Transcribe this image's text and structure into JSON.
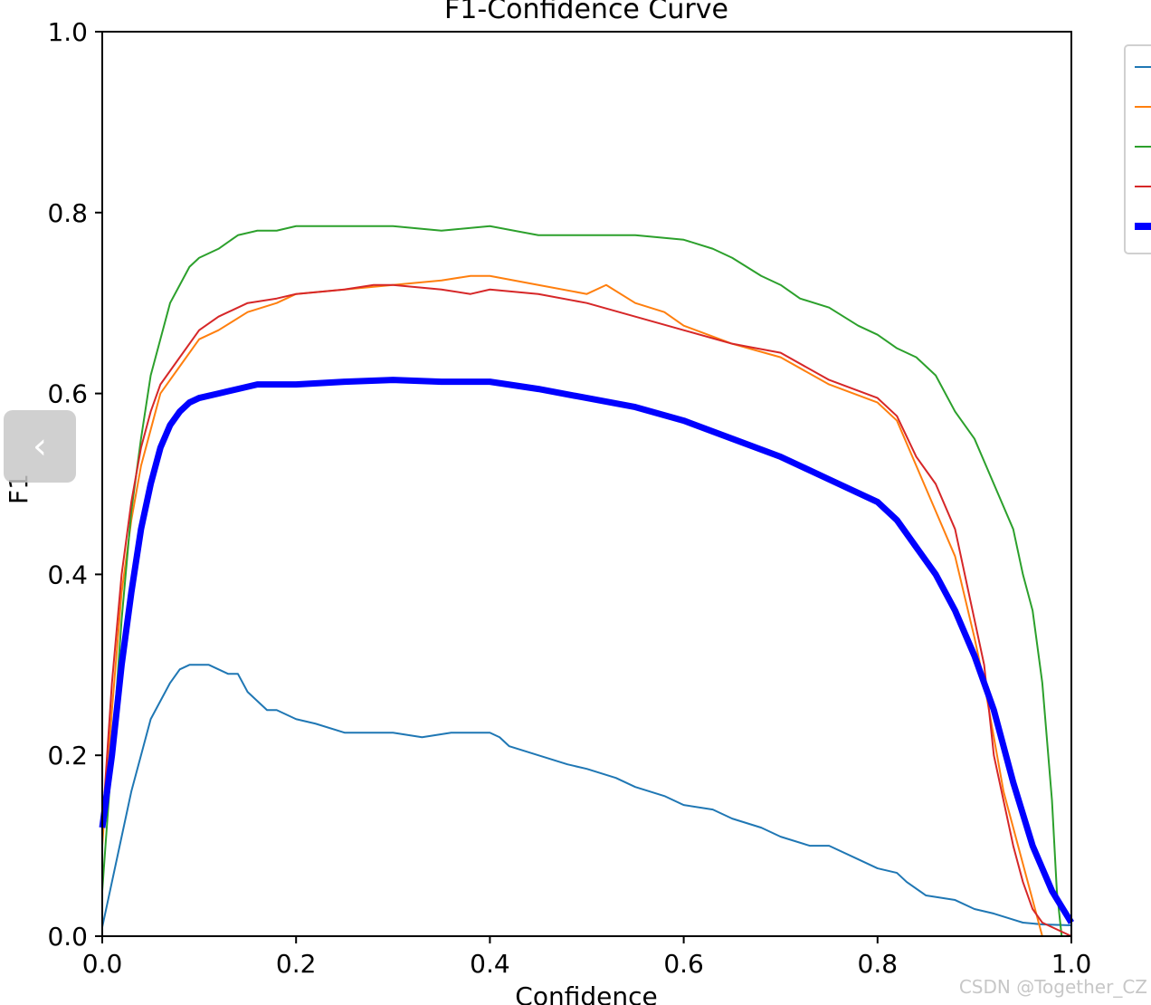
{
  "chart_data": {
    "type": "line",
    "title": "F1-Confidence Curve",
    "xlabel": "Confidence",
    "ylabel": "F1",
    "xlim": [
      0,
      1
    ],
    "ylim": [
      0,
      1
    ],
    "x_ticks": [
      "0.0",
      "0.2",
      "0.4",
      "0.6",
      "0.8",
      "1.0"
    ],
    "y_ticks": [
      "0.0",
      "0.2",
      "0.4",
      "0.6",
      "0.8",
      "1.0"
    ],
    "grid": false,
    "legend_position": "upper-right-outside",
    "series": [
      {
        "color": "#1f77b4",
        "width": 2,
        "x": [
          0,
          0.01,
          0.02,
          0.03,
          0.04,
          0.05,
          0.06,
          0.07,
          0.08,
          0.09,
          0.1,
          0.11,
          0.12,
          0.13,
          0.14,
          0.15,
          0.16,
          0.17,
          0.18,
          0.2,
          0.22,
          0.25,
          0.28,
          0.3,
          0.33,
          0.36,
          0.39,
          0.4,
          0.41,
          0.42,
          0.45,
          0.48,
          0.5,
          0.53,
          0.55,
          0.58,
          0.6,
          0.63,
          0.65,
          0.68,
          0.7,
          0.73,
          0.75,
          0.78,
          0.8,
          0.82,
          0.83,
          0.85,
          0.88,
          0.9,
          0.92,
          0.95,
          0.97,
          1.0
        ],
        "y": [
          0.01,
          0.06,
          0.11,
          0.16,
          0.2,
          0.24,
          0.26,
          0.28,
          0.295,
          0.3,
          0.3,
          0.3,
          0.295,
          0.29,
          0.29,
          0.27,
          0.26,
          0.25,
          0.25,
          0.24,
          0.235,
          0.225,
          0.225,
          0.225,
          0.22,
          0.225,
          0.225,
          0.225,
          0.22,
          0.21,
          0.2,
          0.19,
          0.185,
          0.175,
          0.165,
          0.155,
          0.145,
          0.14,
          0.13,
          0.12,
          0.11,
          0.1,
          0.1,
          0.085,
          0.075,
          0.07,
          0.06,
          0.045,
          0.04,
          0.03,
          0.025,
          0.015,
          0.013,
          0.012
        ]
      },
      {
        "color": "#ff7f0e",
        "width": 2,
        "x": [
          0,
          0.01,
          0.02,
          0.03,
          0.04,
          0.05,
          0.06,
          0.08,
          0.1,
          0.12,
          0.15,
          0.18,
          0.2,
          0.25,
          0.3,
          0.35,
          0.38,
          0.4,
          0.45,
          0.5,
          0.52,
          0.55,
          0.58,
          0.6,
          0.65,
          0.7,
          0.75,
          0.8,
          0.82,
          0.84,
          0.86,
          0.88,
          0.9,
          0.91,
          0.92,
          0.93,
          0.94,
          0.95,
          0.96,
          0.97
        ],
        "y": [
          0.1,
          0.25,
          0.38,
          0.46,
          0.52,
          0.56,
          0.6,
          0.63,
          0.66,
          0.67,
          0.69,
          0.7,
          0.71,
          0.715,
          0.72,
          0.725,
          0.73,
          0.73,
          0.72,
          0.71,
          0.72,
          0.7,
          0.69,
          0.675,
          0.655,
          0.64,
          0.61,
          0.59,
          0.57,
          0.52,
          0.47,
          0.42,
          0.33,
          0.28,
          0.22,
          0.16,
          0.12,
          0.08,
          0.04,
          0.0
        ]
      },
      {
        "color": "#2ca02c",
        "width": 2,
        "x": [
          0,
          0.01,
          0.02,
          0.03,
          0.04,
          0.05,
          0.06,
          0.07,
          0.08,
          0.09,
          0.1,
          0.12,
          0.14,
          0.16,
          0.18,
          0.2,
          0.22,
          0.25,
          0.3,
          0.35,
          0.4,
          0.45,
          0.5,
          0.55,
          0.6,
          0.63,
          0.65,
          0.68,
          0.7,
          0.72,
          0.75,
          0.78,
          0.8,
          0.82,
          0.84,
          0.86,
          0.88,
          0.9,
          0.92,
          0.94,
          0.95,
          0.96,
          0.97,
          0.98,
          0.985,
          0.99
        ],
        "y": [
          0.05,
          0.2,
          0.35,
          0.47,
          0.55,
          0.62,
          0.66,
          0.7,
          0.72,
          0.74,
          0.75,
          0.76,
          0.775,
          0.78,
          0.78,
          0.785,
          0.785,
          0.785,
          0.785,
          0.78,
          0.785,
          0.775,
          0.775,
          0.775,
          0.77,
          0.76,
          0.75,
          0.73,
          0.72,
          0.705,
          0.695,
          0.675,
          0.665,
          0.65,
          0.64,
          0.62,
          0.58,
          0.55,
          0.5,
          0.45,
          0.4,
          0.36,
          0.28,
          0.15,
          0.05,
          0.0
        ]
      },
      {
        "color": "#d62728",
        "width": 2,
        "x": [
          0,
          0.01,
          0.02,
          0.03,
          0.04,
          0.05,
          0.06,
          0.08,
          0.1,
          0.12,
          0.15,
          0.18,
          0.2,
          0.25,
          0.28,
          0.3,
          0.35,
          0.38,
          0.4,
          0.45,
          0.5,
          0.55,
          0.6,
          0.65,
          0.7,
          0.75,
          0.8,
          0.82,
          0.84,
          0.86,
          0.88,
          0.9,
          0.91,
          0.92,
          0.93,
          0.94,
          0.95,
          0.96,
          0.97,
          0.98,
          0.99,
          1.0
        ],
        "y": [
          0.12,
          0.28,
          0.4,
          0.48,
          0.54,
          0.58,
          0.61,
          0.64,
          0.67,
          0.685,
          0.7,
          0.705,
          0.71,
          0.715,
          0.72,
          0.72,
          0.715,
          0.71,
          0.715,
          0.71,
          0.7,
          0.685,
          0.67,
          0.655,
          0.645,
          0.615,
          0.595,
          0.575,
          0.53,
          0.5,
          0.45,
          0.35,
          0.3,
          0.2,
          0.15,
          0.1,
          0.06,
          0.03,
          0.015,
          0.01,
          0.005,
          0.0
        ]
      },
      {
        "color": "#0000ff",
        "width": 7,
        "x": [
          0,
          0.01,
          0.02,
          0.03,
          0.04,
          0.05,
          0.06,
          0.07,
          0.08,
          0.09,
          0.1,
          0.12,
          0.14,
          0.16,
          0.18,
          0.2,
          0.25,
          0.3,
          0.35,
          0.4,
          0.45,
          0.5,
          0.55,
          0.6,
          0.65,
          0.7,
          0.75,
          0.8,
          0.82,
          0.84,
          0.86,
          0.88,
          0.9,
          0.92,
          0.94,
          0.96,
          0.98,
          1.0
        ],
        "y": [
          0.12,
          0.2,
          0.3,
          0.38,
          0.45,
          0.5,
          0.54,
          0.565,
          0.58,
          0.59,
          0.595,
          0.6,
          0.605,
          0.61,
          0.61,
          0.61,
          0.613,
          0.615,
          0.613,
          0.613,
          0.605,
          0.595,
          0.585,
          0.57,
          0.55,
          0.53,
          0.505,
          0.48,
          0.46,
          0.43,
          0.4,
          0.36,
          0.31,
          0.25,
          0.17,
          0.1,
          0.05,
          0.015
        ]
      }
    ]
  },
  "ui": {
    "back_button_glyph": "‹",
    "watermark": "CSDN @Together_CZ"
  }
}
